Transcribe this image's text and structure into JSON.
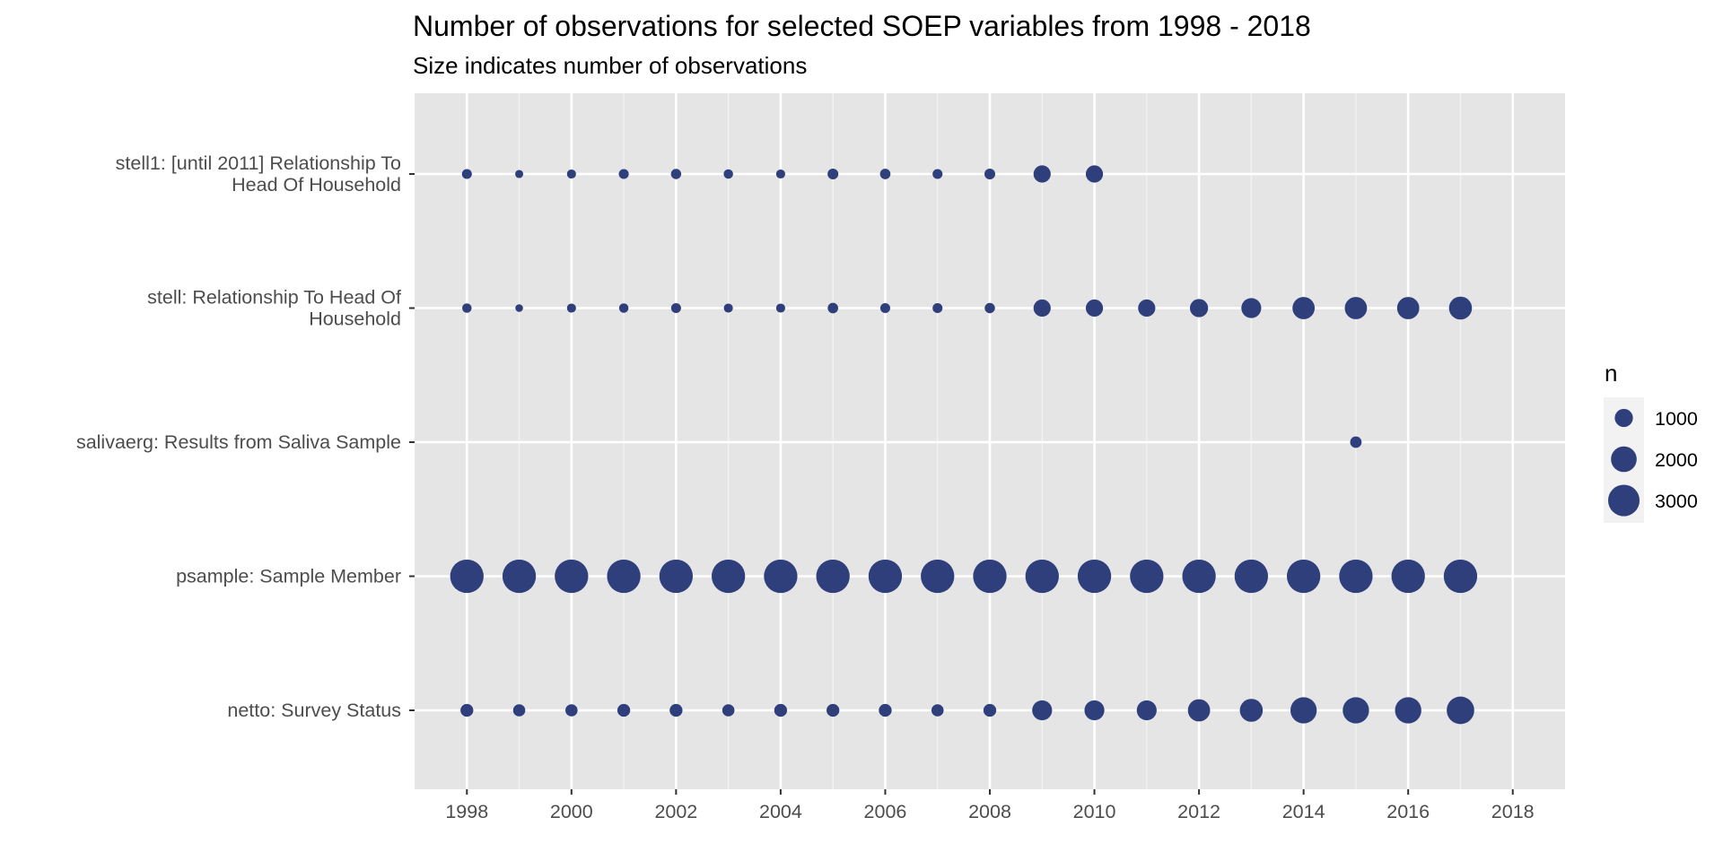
{
  "chart_data": {
    "type": "scatter",
    "title": "Number of observations for selected SOEP variables from 1998 - 2018",
    "subtitle": "Size indicates number of observations",
    "xlabel": "",
    "ylabel": "",
    "xlim": [
      1997,
      2019
    ],
    "x_ticks": [
      1998,
      2000,
      2002,
      2004,
      2006,
      2008,
      2010,
      2012,
      2014,
      2016,
      2018
    ],
    "grid": true,
    "point_color": "#2e3f7c",
    "panel_color": "#e5e5e5",
    "categories": [
      [
        "stell1: [until 2011] Relationship To",
        "Head Of Household"
      ],
      [
        "stell: Relationship To Head Of",
        "Household"
      ],
      [
        "salivaerg: Results from Saliva Sample"
      ],
      [
        "psample: Sample Member"
      ],
      [
        "netto: Survey Status"
      ]
    ],
    "series": [
      {
        "x": [
          1998,
          1999,
          2000,
          2001,
          2002,
          2003,
          2004,
          2005,
          2006,
          2007,
          2008,
          2009,
          2010
        ],
        "n": [
          300,
          200,
          250,
          300,
          320,
          270,
          250,
          350,
          330,
          300,
          350,
          900,
          900
        ]
      },
      {
        "x": [
          1998,
          1999,
          2000,
          2001,
          2002,
          2003,
          2004,
          2005,
          2006,
          2007,
          2008,
          2009,
          2010,
          2011,
          2012,
          2013,
          2014,
          2015,
          2016,
          2017
        ],
        "n": [
          270,
          180,
          250,
          270,
          300,
          250,
          250,
          330,
          300,
          300,
          320,
          900,
          900,
          900,
          1000,
          1200,
          1500,
          1500,
          1500,
          1600
        ]
      },
      {
        "x": [
          2015
        ],
        "n": [
          400
        ]
      },
      {
        "x": [
          1998,
          1999,
          2000,
          2001,
          2002,
          2003,
          2004,
          2005,
          2006,
          2007,
          2008,
          2009,
          2010,
          2011,
          2012,
          2013,
          2014,
          2015,
          2016,
          2017
        ],
        "n": [
          3400,
          3400,
          3400,
          3400,
          3400,
          3400,
          3400,
          3400,
          3400,
          3400,
          3400,
          3400,
          3400,
          3400,
          3400,
          3400,
          3400,
          3400,
          3400,
          3400
        ]
      },
      {
        "x": [
          1998,
          1999,
          2000,
          2001,
          2002,
          2003,
          2004,
          2005,
          2006,
          2007,
          2008,
          2009,
          2010,
          2011,
          2012,
          2013,
          2014,
          2015,
          2016,
          2017
        ],
        "n": [
          500,
          450,
          450,
          500,
          500,
          450,
          500,
          500,
          500,
          450,
          500,
          1200,
          1200,
          1200,
          1500,
          1600,
          2100,
          2100,
          2100,
          2300
        ]
      }
    ],
    "legend": {
      "title": "n",
      "position": "right",
      "values": [
        1000,
        2000,
        3000
      ],
      "labels": [
        "1000",
        "2000",
        "3000"
      ]
    }
  }
}
